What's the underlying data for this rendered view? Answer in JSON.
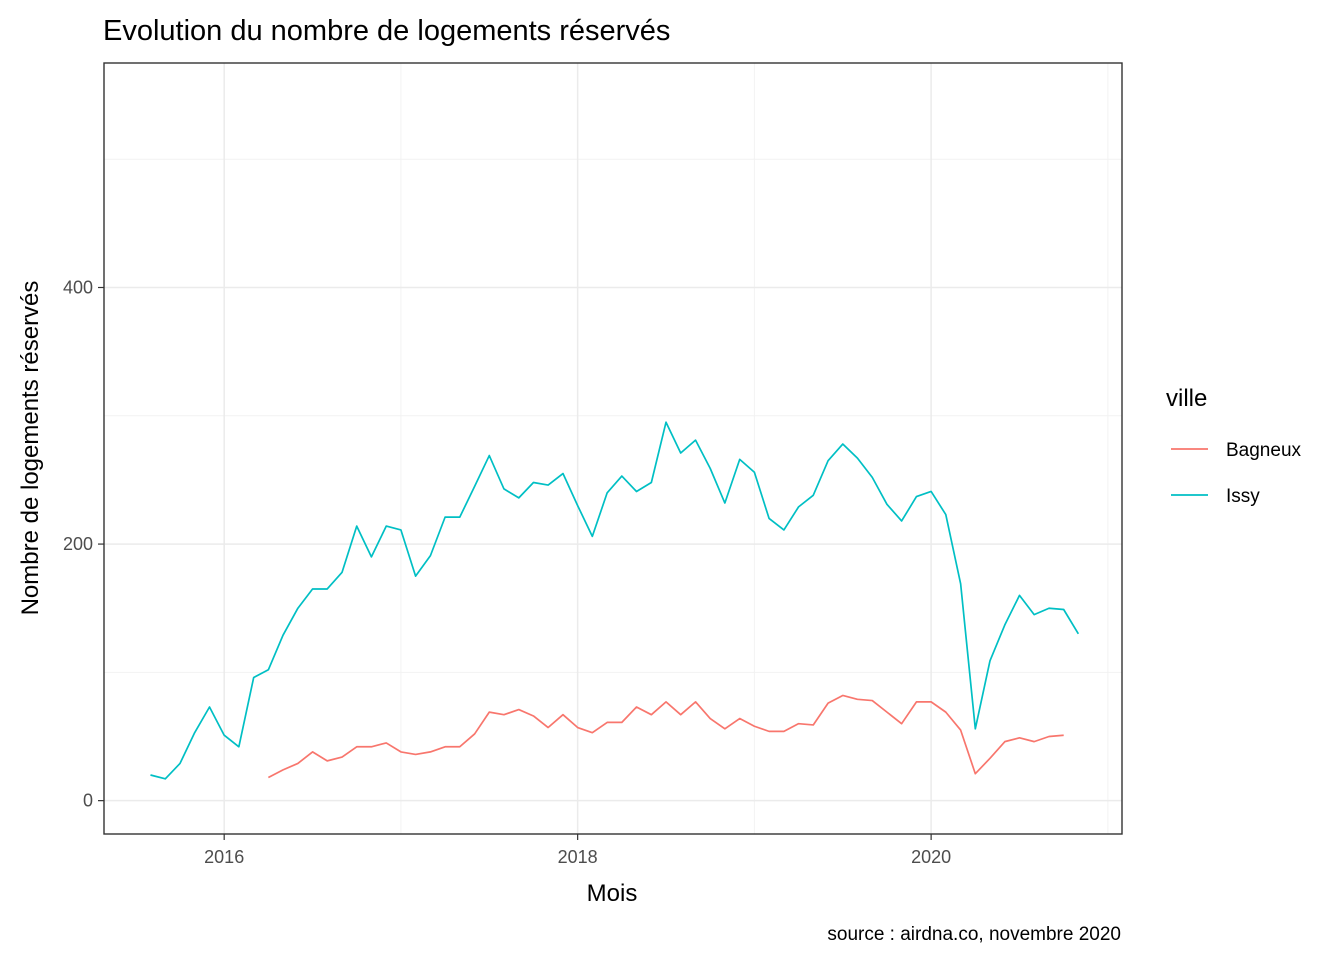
{
  "chart_data": {
    "type": "line",
    "title": "Evolution du nombre de logements réservés",
    "xlabel": "Mois",
    "ylabel": "Nombre de logements réservés",
    "caption": "source : airdna.co, novembre 2020",
    "legend_title": "ville",
    "legend_position": "right",
    "grid": true,
    "x_ticks": [
      2016,
      2018,
      2020
    ],
    "x_tick_labels": [
      "2016",
      "2018",
      "2020"
    ],
    "y_ticks": [
      0,
      200,
      400
    ],
    "y_tick_labels": [
      "0",
      "200",
      "400"
    ],
    "xlim": [
      2015.32,
      2021.08
    ],
    "ylim": [
      -26,
      575
    ],
    "series": [
      {
        "name": "Bagneux",
        "color": "#F8766D",
        "points": [
          [
            2016.25,
            18
          ],
          [
            2016.333,
            24
          ],
          [
            2016.417,
            29
          ],
          [
            2016.5,
            38
          ],
          [
            2016.583,
            31
          ],
          [
            2016.667,
            34
          ],
          [
            2016.75,
            42
          ],
          [
            2016.833,
            42
          ],
          [
            2016.917,
            45
          ],
          [
            2017.0,
            38
          ],
          [
            2017.083,
            36
          ],
          [
            2017.167,
            38
          ],
          [
            2017.25,
            42
          ],
          [
            2017.333,
            42
          ],
          [
            2017.417,
            52
          ],
          [
            2017.5,
            69
          ],
          [
            2017.583,
            67
          ],
          [
            2017.667,
            71
          ],
          [
            2017.75,
            66
          ],
          [
            2017.833,
            57
          ],
          [
            2017.917,
            67
          ],
          [
            2018.0,
            57
          ],
          [
            2018.083,
            53
          ],
          [
            2018.167,
            61
          ],
          [
            2018.25,
            61
          ],
          [
            2018.333,
            73
          ],
          [
            2018.417,
            67
          ],
          [
            2018.5,
            77
          ],
          [
            2018.583,
            67
          ],
          [
            2018.667,
            77
          ],
          [
            2018.75,
            64
          ],
          [
            2018.833,
            56
          ],
          [
            2018.917,
            64
          ],
          [
            2019.0,
            58
          ],
          [
            2019.083,
            54
          ],
          [
            2019.167,
            54
          ],
          [
            2019.25,
            60
          ],
          [
            2019.333,
            59
          ],
          [
            2019.417,
            76
          ],
          [
            2019.5,
            82
          ],
          [
            2019.583,
            79
          ],
          [
            2019.667,
            78
          ],
          [
            2019.75,
            69
          ],
          [
            2019.833,
            60
          ],
          [
            2019.917,
            77
          ],
          [
            2020.0,
            77
          ],
          [
            2020.083,
            69
          ],
          [
            2020.167,
            55
          ],
          [
            2020.25,
            21
          ],
          [
            2020.333,
            33
          ],
          [
            2020.417,
            46
          ],
          [
            2020.5,
            49
          ],
          [
            2020.583,
            46
          ],
          [
            2020.667,
            50
          ],
          [
            2020.75,
            51
          ]
        ]
      },
      {
        "name": "Issy",
        "color": "#00BFC4",
        "points": [
          [
            2015.583,
            20
          ],
          [
            2015.667,
            17
          ],
          [
            2015.75,
            29
          ],
          [
            2015.833,
            53
          ],
          [
            2015.917,
            73
          ],
          [
            2016.0,
            51
          ],
          [
            2016.083,
            42
          ],
          [
            2016.167,
            96
          ],
          [
            2016.25,
            102
          ],
          [
            2016.333,
            129
          ],
          [
            2016.417,
            150
          ],
          [
            2016.5,
            165
          ],
          [
            2016.583,
            165
          ],
          [
            2016.667,
            178
          ],
          [
            2016.75,
            214
          ],
          [
            2016.833,
            190
          ],
          [
            2016.917,
            214
          ],
          [
            2017.0,
            211
          ],
          [
            2017.083,
            175
          ],
          [
            2017.167,
            191
          ],
          [
            2017.25,
            221
          ],
          [
            2017.333,
            221
          ],
          [
            2017.417,
            245
          ],
          [
            2017.5,
            269
          ],
          [
            2017.583,
            243
          ],
          [
            2017.667,
            236
          ],
          [
            2017.75,
            248
          ],
          [
            2017.833,
            246
          ],
          [
            2017.917,
            255
          ],
          [
            2018.0,
            230
          ],
          [
            2018.083,
            206
          ],
          [
            2018.167,
            240
          ],
          [
            2018.25,
            253
          ],
          [
            2018.333,
            241
          ],
          [
            2018.417,
            248
          ],
          [
            2018.5,
            295
          ],
          [
            2018.583,
            271
          ],
          [
            2018.667,
            281
          ],
          [
            2018.75,
            259
          ],
          [
            2018.833,
            232
          ],
          [
            2018.917,
            266
          ],
          [
            2019.0,
            256
          ],
          [
            2019.083,
            220
          ],
          [
            2019.167,
            211
          ],
          [
            2019.25,
            229
          ],
          [
            2019.333,
            238
          ],
          [
            2019.417,
            265
          ],
          [
            2019.5,
            278
          ],
          [
            2019.583,
            267
          ],
          [
            2019.667,
            252
          ],
          [
            2019.75,
            231
          ],
          [
            2019.833,
            218
          ],
          [
            2019.917,
            237
          ],
          [
            2020.0,
            241
          ],
          [
            2020.083,
            223
          ],
          [
            2020.167,
            169
          ],
          [
            2020.25,
            56
          ],
          [
            2020.333,
            109
          ],
          [
            2020.417,
            137
          ],
          [
            2020.5,
            160
          ],
          [
            2020.583,
            145
          ],
          [
            2020.667,
            150
          ],
          [
            2020.75,
            149
          ],
          [
            2020.833,
            130
          ]
        ]
      }
    ]
  }
}
